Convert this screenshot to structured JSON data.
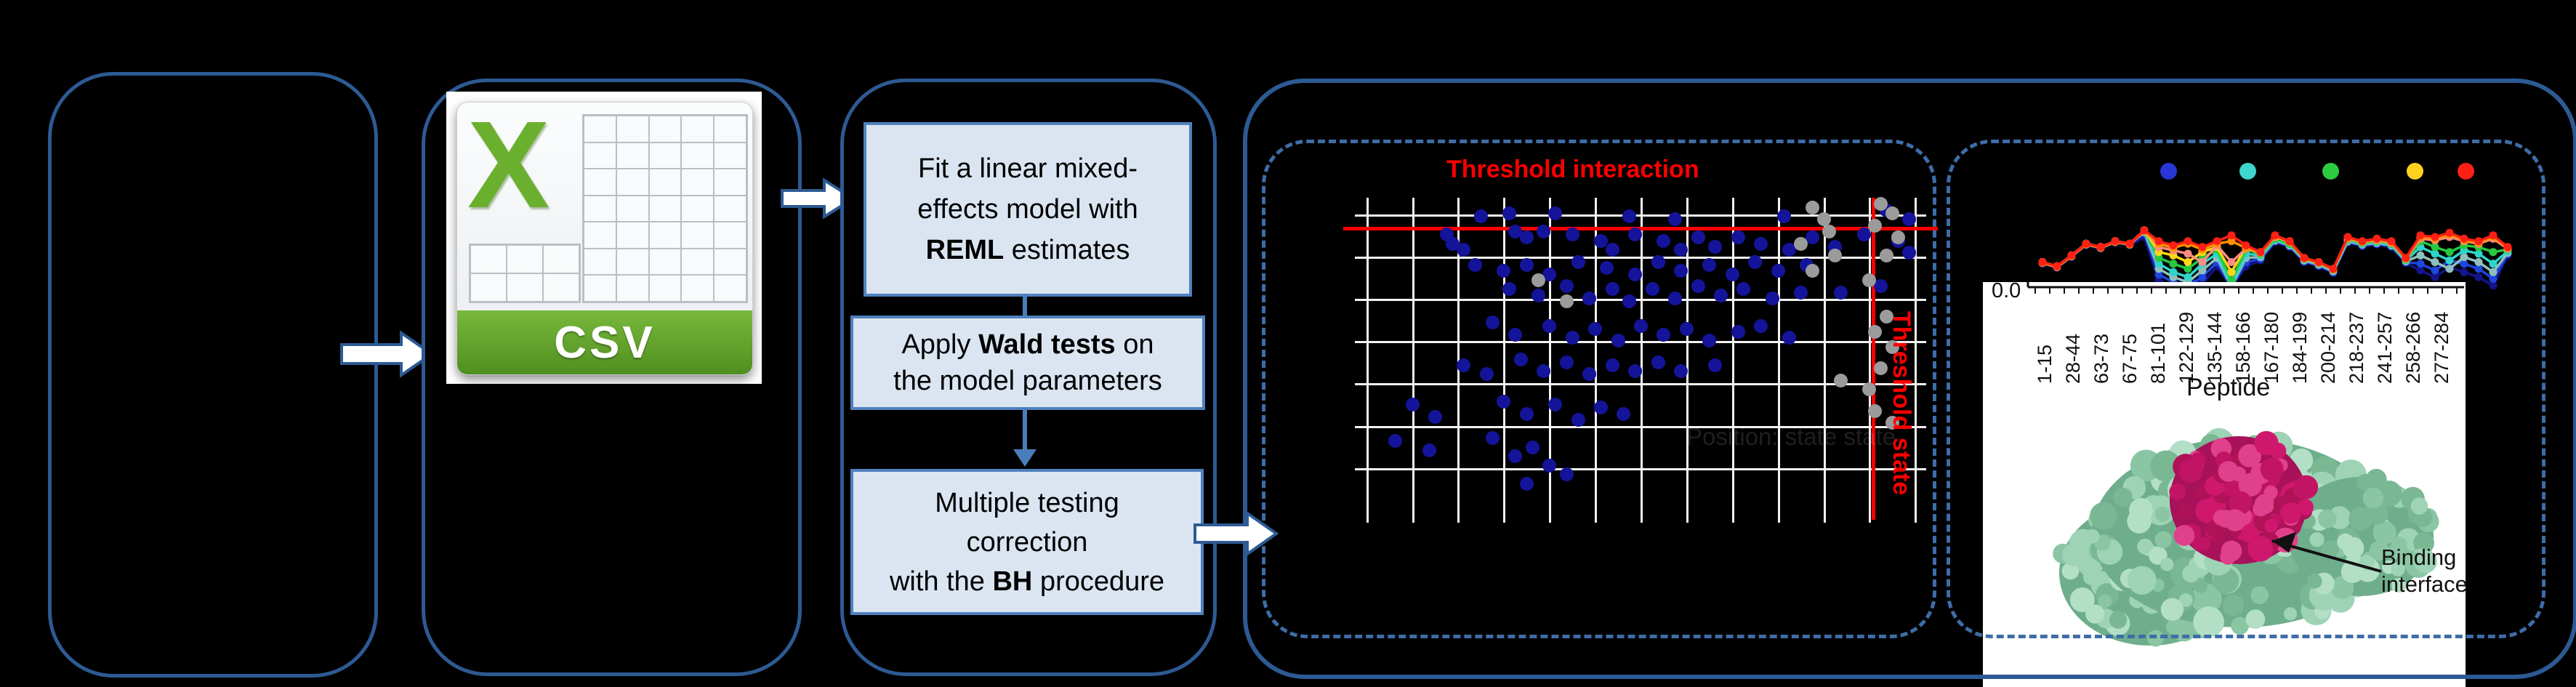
{
  "colors": {
    "panel_border": "#2d5a93",
    "dashed_border": "#3e6da8",
    "box_bg": "#dbe5f1",
    "box_border": "#4f81bd",
    "down_arrow": "#4a7ebb",
    "threshold_red": "#ff0000",
    "scatter_dot_blue": "#14149b",
    "scatter_dot_gray": "#9b9b9b",
    "csv_green": "#6ab02e"
  },
  "panel2": {
    "csv_label": "CSV"
  },
  "panel3": {
    "box1": [
      [
        {
          "t": "Fit a linear mixed-"
        }
      ],
      [
        {
          "t": "effects model with"
        }
      ],
      [
        {
          "t": "REML",
          "b": true
        },
        {
          "t": " estimates"
        }
      ]
    ],
    "box2": [
      [
        {
          "t": "Apply "
        },
        {
          "t": "Wald tests",
          "b": true
        },
        {
          "t": " on"
        }
      ],
      [
        {
          "t": "the model parameters"
        }
      ]
    ],
    "box3": [
      [
        {
          "t": "Multiple testing"
        }
      ],
      [
        {
          "t": "correction"
        }
      ],
      [
        {
          "t": "with the "
        },
        {
          "t": "BH",
          "b": true
        },
        {
          "t": " procedure"
        }
      ]
    ]
  },
  "chart_data": [
    {
      "type": "scatter",
      "title": "Threshold interaction",
      "vline_label": "Threshold state",
      "faint_inner_label": "Position: state state",
      "hline_y_pct": 9.5,
      "vline_x_pct": 90.5,
      "grid": "white on black",
      "legend_position": "none",
      "series": [
        {
          "name": "blue",
          "color": "#14149b",
          "points_pct": [
            [
              22,
              6
            ],
            [
              27,
              5
            ],
            [
              35,
              5
            ],
            [
              48,
              6
            ],
            [
              56,
              7
            ],
            [
              75,
              6
            ],
            [
              93,
              4
            ],
            [
              97,
              7
            ],
            [
              16,
              12
            ],
            [
              17,
              15
            ],
            [
              19,
              17
            ],
            [
              28,
              11
            ],
            [
              30,
              13
            ],
            [
              33,
              11
            ],
            [
              38,
              12
            ],
            [
              43,
              14
            ],
            [
              45,
              17
            ],
            [
              49,
              12
            ],
            [
              54,
              14
            ],
            [
              57,
              17
            ],
            [
              60,
              13
            ],
            [
              63,
              16
            ],
            [
              67,
              13
            ],
            [
              71,
              15
            ],
            [
              76,
              17
            ],
            [
              80,
              13
            ],
            [
              84,
              16
            ],
            [
              89,
              12
            ],
            [
              95,
              14
            ],
            [
              97,
              18
            ],
            [
              21,
              22
            ],
            [
              26,
              24
            ],
            [
              30,
              22
            ],
            [
              34,
              25
            ],
            [
              39,
              21
            ],
            [
              44,
              23
            ],
            [
              49,
              25
            ],
            [
              53,
              21
            ],
            [
              57,
              24
            ],
            [
              62,
              22
            ],
            [
              66,
              25
            ],
            [
              70,
              21
            ],
            [
              74,
              24
            ],
            [
              79,
              22
            ],
            [
              27,
              30
            ],
            [
              32,
              32
            ],
            [
              37,
              29
            ],
            [
              41,
              33
            ],
            [
              45,
              30
            ],
            [
              48,
              34
            ],
            [
              52,
              30
            ],
            [
              56,
              33
            ],
            [
              60,
              29
            ],
            [
              64,
              32
            ],
            [
              68,
              30
            ],
            [
              73,
              33
            ],
            [
              78,
              31
            ],
            [
              85,
              31
            ],
            [
              92,
              29
            ],
            [
              24,
              41
            ],
            [
              28,
              45
            ],
            [
              34,
              42
            ],
            [
              38,
              46
            ],
            [
              42,
              43
            ],
            [
              46,
              47
            ],
            [
              50,
              42
            ],
            [
              54,
              45
            ],
            [
              58,
              43
            ],
            [
              62,
              47
            ],
            [
              67,
              44
            ],
            [
              71,
              42
            ],
            [
              76,
              46
            ],
            [
              19,
              55
            ],
            [
              23,
              58
            ],
            [
              29,
              53
            ],
            [
              33,
              57
            ],
            [
              37,
              54
            ],
            [
              41,
              58
            ],
            [
              45,
              55
            ],
            [
              49,
              57
            ],
            [
              53,
              54
            ],
            [
              57,
              57
            ],
            [
              63,
              55
            ],
            [
              10,
              68
            ],
            [
              14,
              72
            ],
            [
              26,
              67
            ],
            [
              30,
              71
            ],
            [
              35,
              68
            ],
            [
              39,
              73
            ],
            [
              43,
              69
            ],
            [
              47,
              71
            ],
            [
              7,
              80
            ],
            [
              13,
              83
            ],
            [
              24,
              79
            ],
            [
              28,
              85
            ],
            [
              31,
              82
            ],
            [
              34,
              88
            ],
            [
              37,
              91
            ],
            [
              30,
              94
            ]
          ]
        },
        {
          "name": "gray",
          "color": "#9b9b9b",
          "points_pct": [
            [
              80,
              3
            ],
            [
              82,
              7
            ],
            [
              83,
              11
            ],
            [
              78,
              15
            ],
            [
              84,
              19
            ],
            [
              80,
              24
            ],
            [
              92,
              2
            ],
            [
              94,
              5
            ],
            [
              91,
              9
            ],
            [
              95,
              13
            ],
            [
              93,
              19
            ],
            [
              90,
              27
            ],
            [
              32,
              27
            ],
            [
              37,
              34
            ],
            [
              93,
              39
            ],
            [
              91,
              44
            ],
            [
              94,
              49
            ],
            [
              92,
              56
            ],
            [
              85,
              60
            ],
            [
              90,
              63
            ],
            [
              91,
              70
            ],
            [
              94,
              74
            ]
          ]
        }
      ]
    },
    {
      "type": "line",
      "xlabel": "Peptide",
      "y_tick_label": "0.0",
      "categories": [
        "1-15",
        "28-44",
        "63-73",
        "67-75",
        "81-101",
        "122-129",
        "135-144",
        "158-166",
        "167-180",
        "184-199",
        "200-214",
        "218-237",
        "241-257",
        "258-266",
        "277-284"
      ],
      "legend_dot_colors": [
        "#2936d6",
        "#3fd6cf",
        "#2ecc40",
        "#ffd21f",
        "#ff2015"
      ],
      "series": [
        {
          "name": "t-navy",
          "color": "#14148c",
          "values": [
            0.28,
            0.23,
            0.36,
            0.5,
            0.46,
            0.53,
            0.5,
            0.6,
            0.08,
            0.0,
            0.1,
            0.04,
            0.25,
            0.0,
            0.25,
            0.32,
            0.54,
            0.48,
            0.3,
            0.25,
            0.17,
            0.53,
            0.49,
            0.51,
            0.48,
            0.29,
            0.2,
            0.12,
            0.24,
            0.18,
            0.12,
            0.02,
            0.38
          ]
        },
        {
          "name": "t-blue",
          "color": "#1e46e0",
          "values": [
            0.29,
            0.24,
            0.37,
            0.51,
            0.47,
            0.54,
            0.51,
            0.64,
            0.15,
            0.06,
            0.02,
            0.12,
            0.3,
            0.0,
            0.3,
            0.34,
            0.55,
            0.49,
            0.31,
            0.26,
            0.18,
            0.54,
            0.5,
            0.52,
            0.49,
            0.3,
            0.28,
            0.2,
            0.32,
            0.28,
            0.22,
            0.1,
            0.4
          ]
        },
        {
          "name": "t-pale",
          "color": "#8fc0bd",
          "values": [
            0.3,
            0.25,
            0.38,
            0.52,
            0.48,
            0.55,
            0.52,
            0.66,
            0.22,
            0.12,
            0.06,
            0.2,
            0.35,
            0.01,
            0.35,
            0.36,
            0.56,
            0.5,
            0.32,
            0.27,
            0.19,
            0.55,
            0.51,
            0.53,
            0.5,
            0.31,
            0.38,
            0.3,
            0.22,
            0.36,
            0.3,
            0.18,
            0.41
          ]
        },
        {
          "name": "t-cyan",
          "color": "#2fd5c8",
          "values": [
            0.3,
            0.25,
            0.38,
            0.52,
            0.48,
            0.55,
            0.52,
            0.68,
            0.28,
            0.18,
            0.12,
            0.28,
            0.4,
            0.02,
            0.4,
            0.38,
            0.57,
            0.51,
            0.33,
            0.28,
            0.2,
            0.56,
            0.52,
            0.54,
            0.51,
            0.32,
            0.48,
            0.4,
            0.32,
            0.44,
            0.4,
            0.28,
            0.43
          ]
        },
        {
          "name": "t-green",
          "color": "#27c93f",
          "values": [
            0.3,
            0.25,
            0.38,
            0.52,
            0.48,
            0.55,
            0.52,
            0.68,
            0.35,
            0.28,
            0.22,
            0.35,
            0.45,
            0.08,
            0.45,
            0.4,
            0.58,
            0.52,
            0.34,
            0.29,
            0.21,
            0.57,
            0.53,
            0.55,
            0.52,
            0.33,
            0.55,
            0.48,
            0.42,
            0.5,
            0.48,
            0.42,
            0.45
          ]
        },
        {
          "name": "t-yellow",
          "color": "#ffd617",
          "values": [
            0.3,
            0.25,
            0.38,
            0.52,
            0.48,
            0.55,
            0.52,
            0.68,
            0.42,
            0.38,
            0.3,
            0.42,
            0.48,
            0.18,
            0.48,
            0.42,
            0.6,
            0.55,
            0.35,
            0.3,
            0.22,
            0.58,
            0.54,
            0.56,
            0.53,
            0.34,
            0.6,
            0.58,
            0.62,
            0.56,
            0.53,
            0.6,
            0.46
          ]
        },
        {
          "name": "t-salmon",
          "color": "#ff8c82",
          "values": [
            0.3,
            0.25,
            0.38,
            0.52,
            0.48,
            0.55,
            0.52,
            0.68,
            0.48,
            0.44,
            0.4,
            0.3,
            0.5,
            0.3,
            0.46,
            0.41,
            0.6,
            0.54,
            0.34,
            0.29,
            0.21,
            0.58,
            0.54,
            0.56,
            0.53,
            0.34,
            0.58,
            0.56,
            0.6,
            0.55,
            0.52,
            0.58,
            0.46
          ]
        },
        {
          "name": "t-orange",
          "color": "#ff9000",
          "values": [
            0.29,
            0.24,
            0.37,
            0.51,
            0.47,
            0.54,
            0.51,
            0.67,
            0.52,
            0.47,
            0.52,
            0.45,
            0.52,
            0.55,
            0.47,
            0.41,
            0.61,
            0.54,
            0.34,
            0.29,
            0.21,
            0.59,
            0.54,
            0.57,
            0.54,
            0.34,
            0.6,
            0.58,
            0.63,
            0.56,
            0.53,
            0.6,
            0.47
          ]
        },
        {
          "name": "t-red",
          "color": "#ff1f14",
          "values": [
            0.3,
            0.25,
            0.38,
            0.52,
            0.48,
            0.55,
            0.52,
            0.68,
            0.55,
            0.5,
            0.55,
            0.48,
            0.55,
            0.62,
            0.5,
            0.42,
            0.62,
            0.55,
            0.35,
            0.3,
            0.22,
            0.6,
            0.55,
            0.58,
            0.55,
            0.35,
            0.62,
            0.6,
            0.65,
            0.58,
            0.55,
            0.62,
            0.48
          ]
        }
      ]
    }
  ],
  "protein": {
    "annotation_line1": "Binding",
    "annotation_line2": "interface"
  }
}
